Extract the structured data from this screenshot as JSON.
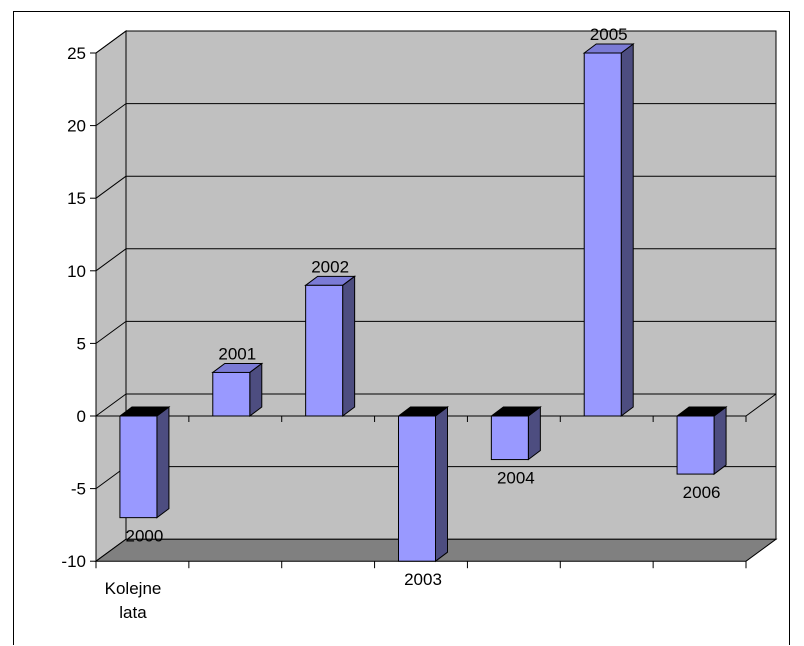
{
  "chart_data": {
    "type": "bar",
    "style": "3d-column",
    "categories": [
      "2000",
      "2001",
      "2002",
      "2003",
      "2004",
      "2005",
      "2006"
    ],
    "values": [
      -7,
      3,
      9,
      -10,
      -3,
      25,
      -4
    ],
    "data_labels": [
      "2000",
      "2001",
      "2002",
      "2003",
      "2004",
      "2005",
      "2006"
    ],
    "xlabel": [
      "Kolejne",
      "lata"
    ],
    "ylabel": "",
    "ylim": [
      -10,
      25
    ],
    "yticks": [
      "25",
      "20",
      "15",
      "10",
      "5",
      "0",
      "-5",
      "-10"
    ],
    "ytick_values": [
      25,
      20,
      15,
      10,
      5,
      0,
      -5,
      -10
    ],
    "grid": true,
    "legend": "none",
    "colors": {
      "bar_front": "#9999FF",
      "bar_side": "#4D4D80",
      "bar_top": "#7B7BD6",
      "bar_top_dark": "#000000",
      "wall": "#C0C0C0",
      "floor": "#808080",
      "gridline": "#000000"
    }
  }
}
